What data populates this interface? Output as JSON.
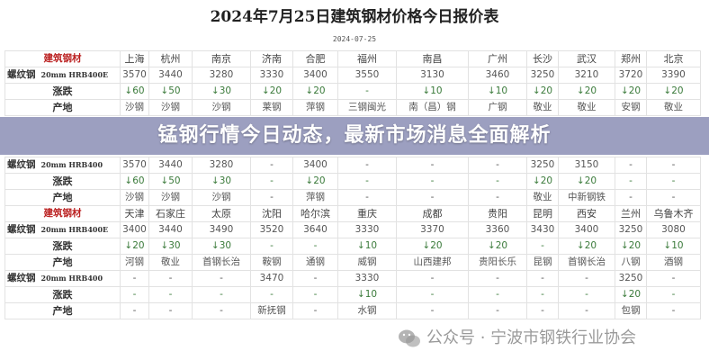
{
  "header": {
    "title": "2024年7月25日建筑钢材价格今日报价表",
    "date": "2024-07-25"
  },
  "banner": {
    "text": "锰钢行情今日动态，最新市场消息全面解析"
  },
  "watermark": {
    "icon": "wechat-icon",
    "text": "公众号 · 宁波市钢铁行业协会"
  },
  "colors": {
    "header_red": "#b22222",
    "change_green": "#3a7a3a",
    "banner": "#767aa8"
  },
  "table": {
    "sections": [
      {
        "header_label": "建筑钢材",
        "cities": [
          "上海",
          "杭州",
          "南京",
          "济南",
          "合肥",
          "福州",
          "南昌",
          "广州",
          "长沙",
          "武汉",
          "郑州",
          "北京"
        ],
        "products": [
          {
            "name": "螺纹钢",
            "spec": "20mm HRB400E",
            "prices": [
              "3570",
              "3440",
              "3280",
              "3330",
              "3400",
              "3550",
              "3130",
              "3460",
              "3250",
              "3210",
              "3720",
              "3390"
            ],
            "change_label": "涨跌",
            "changes": [
              "↓60",
              "↓50",
              "↓30",
              "↓20",
              "↓20",
              "-",
              "↓10",
              "↓10",
              "↓20",
              "↓20",
              "↓20",
              "↓20"
            ],
            "origin_label": "产地",
            "origins": [
              "沙钢",
              "沙钢",
              "沙钢",
              "莱钢",
              "萍钢",
              "三钢闽光",
              "南（昌）钢",
              "广钢",
              "敬业",
              "敬业",
              "安钢",
              "敬业"
            ]
          },
          {
            "name": "螺纹钢",
            "spec": "20mm HRB400",
            "prices": [
              "3570",
              "3440",
              "3280",
              "-",
              "3400",
              "-",
              "-",
              "-",
              "3250",
              "3150",
              "-",
              "-"
            ],
            "change_label": "涨跌",
            "changes": [
              "↓60",
              "↓50",
              "↓30",
              "-",
              "↓20",
              "-",
              "-",
              "-",
              "↓20",
              "↓20",
              "-",
              "-"
            ],
            "origin_label": "产地",
            "origins": [
              "沙钢",
              "沙钢",
              "沙钢",
              "-",
              "萍钢",
              "-",
              "-",
              "-",
              "敬业",
              "中新钢铁",
              "-",
              "-"
            ]
          }
        ]
      },
      {
        "header_label": "建筑钢材",
        "cities": [
          "天津",
          "石家庄",
          "太原",
          "沈阳",
          "哈尔滨",
          "重庆",
          "成都",
          "贵阳",
          "昆明",
          "西安",
          "兰州",
          "乌鲁木齐"
        ],
        "products": [
          {
            "name": "螺纹钢",
            "spec": "20mm HRB400E",
            "prices": [
              "3400",
              "3440",
              "3490",
              "3520",
              "3640",
              "3330",
              "3370",
              "3360",
              "3430",
              "3400",
              "3250",
              "3080"
            ],
            "change_label": "涨跌",
            "changes": [
              "↓20",
              "↓30",
              "↓30",
              "-",
              "-",
              "↓10",
              "↓20",
              "↓20",
              "-",
              "↓20",
              "↓20",
              "↓10"
            ],
            "origin_label": "产地",
            "origins": [
              "河钢",
              "敬业",
              "首钢长治",
              "鞍钢",
              "通钢",
              "威钢",
              "山西建邦",
              "贵阳长乐",
              "昆钢",
              "首钢长治",
              "八钢",
              "酒钢"
            ]
          },
          {
            "name": "螺纹钢",
            "spec": "20mm HRB400",
            "prices": [
              "-",
              "-",
              "-",
              "3470",
              "-",
              "3330",
              "-",
              "-",
              "-",
              "-",
              "3250",
              "-"
            ],
            "change_label": "涨跌",
            "changes": [
              "-",
              "-",
              "-",
              "-",
              "-",
              "↓10",
              "-",
              "-",
              "-",
              "-",
              "↓20",
              "-"
            ],
            "origin_label": "产地",
            "origins": [
              "-",
              "-",
              "-",
              "新抚钢",
              "-",
              "水钢",
              "-",
              "-",
              "-",
              "-",
              "包钢",
              "-"
            ]
          }
        ]
      }
    ]
  }
}
